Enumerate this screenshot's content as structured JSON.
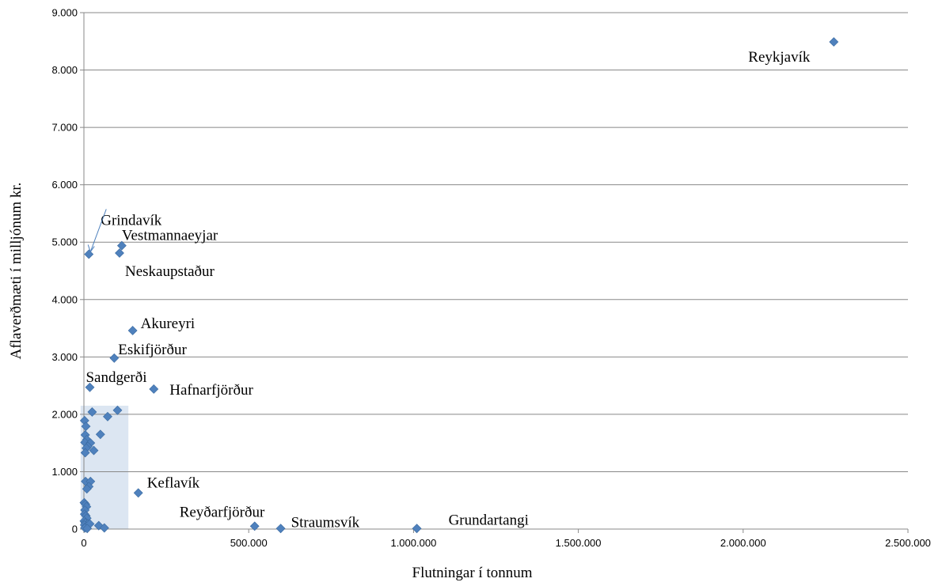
{
  "chart_data": {
    "type": "scatter",
    "title": "",
    "xlabel": "Flutningar í tonnum",
    "ylabel": "Aflaverðmæti í milljónum kr.",
    "xlim": [
      0,
      2500000
    ],
    "ylim": [
      0,
      9000
    ],
    "x_tick_labels": [
      "0",
      "500.000",
      "1.000.000",
      "1.500.000",
      "2.000.000",
      "2.500.000"
    ],
    "y_tick_labels": [
      "0",
      "1.000",
      "2.000",
      "3.000",
      "4.000",
      "5.000",
      "6.000",
      "7.000",
      "8.000",
      "9.000"
    ],
    "grid": "horizontal",
    "legend": "none",
    "marker_color": "#4f81bd",
    "highlight_color": "#dce6f2",
    "highlight_region": {
      "x": [
        -10000,
        135000
      ],
      "y": [
        0,
        2150
      ]
    },
    "labeled_points": [
      {
        "name": "Reykjavík",
        "x": 2275000,
        "y": 8490
      },
      {
        "name": "Grindavík",
        "x": 15000,
        "y": 4790
      },
      {
        "name": "Vestmannaeyjar",
        "x": 115000,
        "y": 4940
      },
      {
        "name": "Neskaupstaður",
        "x": 108000,
        "y": 4810
      },
      {
        "name": "Akureyri",
        "x": 148000,
        "y": 3460
      },
      {
        "name": "Eskifjörður",
        "x": 92000,
        "y": 2980
      },
      {
        "name": "Sandgerði",
        "x": 18000,
        "y": 2470
      },
      {
        "name": "Hafnarfjörður",
        "x": 212000,
        "y": 2440
      },
      {
        "name": "Keflavík",
        "x": 165000,
        "y": 630
      },
      {
        "name": "Reyðarfjörður",
        "x": 518000,
        "y": 50
      },
      {
        "name": "Straumsvík",
        "x": 597000,
        "y": 10
      },
      {
        "name": "Grundartangi",
        "x": 1010000,
        "y": 10
      }
    ],
    "other_points": [
      {
        "x": 25000,
        "y": 2040
      },
      {
        "x": 102000,
        "y": 2070
      },
      {
        "x": 72000,
        "y": 1960
      },
      {
        "x": 2000,
        "y": 1890
      },
      {
        "x": 6000,
        "y": 1790
      },
      {
        "x": 50000,
        "y": 1650
      },
      {
        "x": 4000,
        "y": 1640
      },
      {
        "x": 9000,
        "y": 1560
      },
      {
        "x": 3000,
        "y": 1510
      },
      {
        "x": 20000,
        "y": 1500
      },
      {
        "x": 12000,
        "y": 1440
      },
      {
        "x": 7000,
        "y": 1410
      },
      {
        "x": 30000,
        "y": 1370
      },
      {
        "x": 4000,
        "y": 1330
      },
      {
        "x": 5000,
        "y": 830
      },
      {
        "x": 20000,
        "y": 830
      },
      {
        "x": 15000,
        "y": 740
      },
      {
        "x": 9000,
        "y": 700
      },
      {
        "x": 1000,
        "y": 460
      },
      {
        "x": 5000,
        "y": 430
      },
      {
        "x": 8000,
        "y": 390
      },
      {
        "x": 3000,
        "y": 330
      },
      {
        "x": 2000,
        "y": 260
      },
      {
        "x": 6000,
        "y": 230
      },
      {
        "x": 9000,
        "y": 190
      },
      {
        "x": 1000,
        "y": 140
      },
      {
        "x": 4000,
        "y": 110
      },
      {
        "x": 12000,
        "y": 90
      },
      {
        "x": 2000,
        "y": 70
      },
      {
        "x": 7000,
        "y": 50
      },
      {
        "x": 18000,
        "y": 90
      },
      {
        "x": 3000,
        "y": 20
      },
      {
        "x": 10000,
        "y": 10
      },
      {
        "x": 45000,
        "y": 60
      },
      {
        "x": 62000,
        "y": 20
      }
    ]
  }
}
